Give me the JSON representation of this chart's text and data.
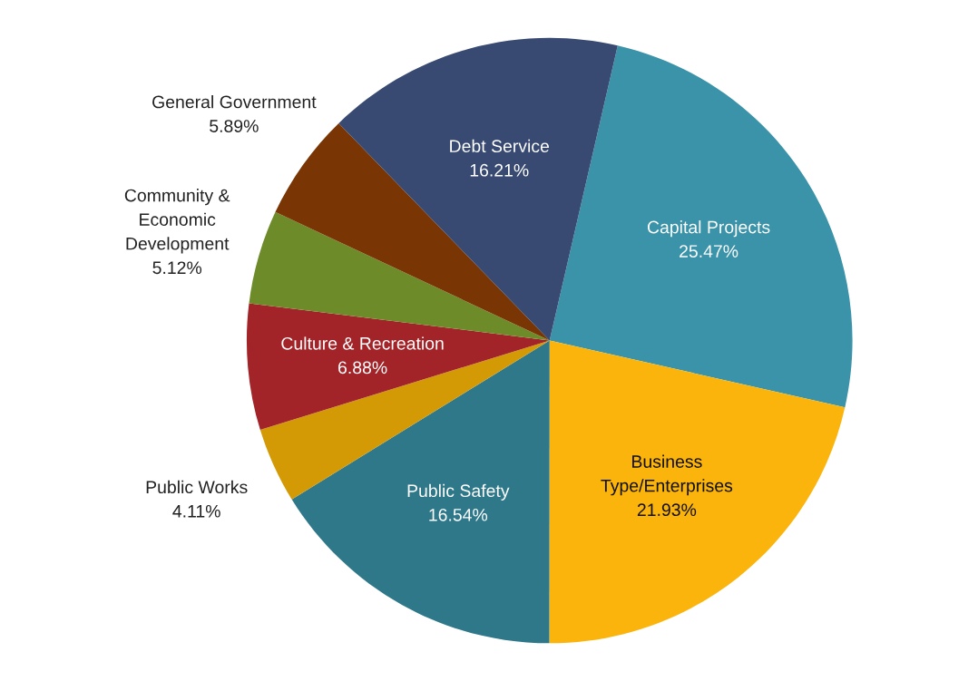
{
  "chart_data": {
    "type": "pie",
    "categories": [
      "Capital Projects",
      "Business\nType/Enterprises",
      "Public Safety",
      "Public Works",
      "Culture & Recreation",
      "Community &\nEconomic\nDevelopment",
      "General Government",
      "Debt Service"
    ],
    "values": [
      25.47,
      21.93,
      16.54,
      4.11,
      6.88,
      5.12,
      5.89,
      16.21
    ],
    "colors": [
      "#3a93a8",
      "#fbb40b",
      "#2e7889",
      "#d49a06",
      "#a32428",
      "#6e8b2a",
      "#7a3504",
      "#384a72"
    ],
    "value_labels": [
      "25.47%",
      "21.93%",
      "16.54%",
      "4.11%",
      "6.88%",
      "5.12%",
      "5.89%",
      "16.21%"
    ],
    "legend": false
  }
}
